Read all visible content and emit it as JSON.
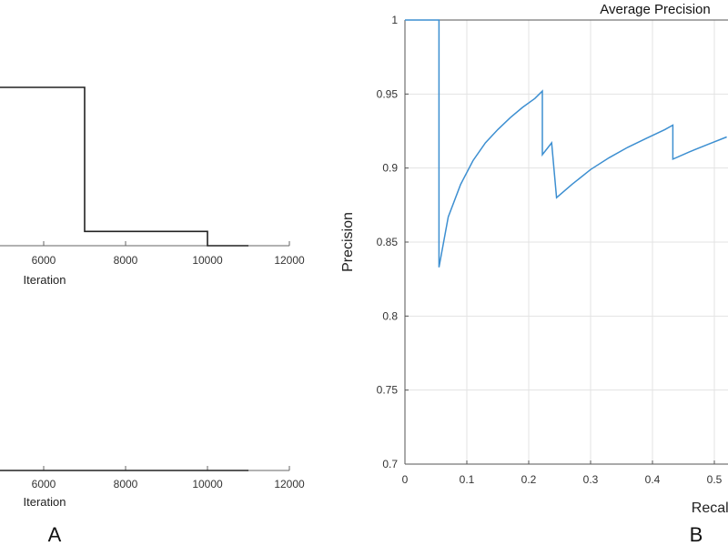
{
  "panels": {
    "a_label": "A",
    "b_label": "B"
  },
  "chart_data": [
    {
      "type": "line",
      "panel": "A-top",
      "title": "",
      "xlabel": "Iteration",
      "ylabel": "",
      "xlim": [
        0,
        12000
      ],
      "xticks": [
        6000,
        8000,
        10000,
        12000
      ],
      "series": [
        {
          "color": "#222222",
          "step": true,
          "x": [
            0,
            7000,
            7000,
            10000,
            10000,
            11000
          ],
          "y": [
            1.0,
            1.0,
            0.09,
            0.09,
            0.0,
            0.0
          ]
        }
      ]
    },
    {
      "type": "line",
      "panel": "A-bottom",
      "title": "",
      "xlabel": "Iteration",
      "ylabel": "",
      "xlim": [
        0,
        12000
      ],
      "xticks": [
        6000,
        8000,
        10000,
        12000
      ],
      "series": [
        {
          "color": "#222222",
          "x": [
            0,
            11000
          ],
          "y": [
            0,
            0
          ]
        }
      ]
    },
    {
      "type": "line",
      "panel": "B",
      "title": "Average Precision",
      "xlabel": "Recall",
      "ylabel": "Precision",
      "xlim": [
        0,
        0.52
      ],
      "ylim": [
        0.7,
        1.0
      ],
      "grid": true,
      "xticks": [
        0,
        0.1,
        0.2,
        0.3,
        0.4,
        0.5
      ],
      "xtick_labels": [
        "0",
        "0.1",
        "0.2",
        "0.3",
        "0.4",
        "0.5"
      ],
      "yticks": [
        0.7,
        0.75,
        0.8,
        0.85,
        0.9,
        0.95,
        1.0
      ],
      "ytick_labels": [
        "0.7",
        "0.75",
        "0.8",
        "0.85",
        "0.9",
        "0.95",
        "1"
      ],
      "series": [
        {
          "color": "#3d8fd1",
          "x": [
            0,
            0.055,
            0.055,
            0.07,
            0.09,
            0.11,
            0.13,
            0.15,
            0.17,
            0.19,
            0.21,
            0.222,
            0.222,
            0.237,
            0.237,
            0.245,
            0.245,
            0.27,
            0.3,
            0.33,
            0.36,
            0.39,
            0.42,
            0.433,
            0.433,
            0.46,
            0.49,
            0.52
          ],
          "y": [
            1.0,
            1.0,
            0.833,
            0.867,
            0.889,
            0.905,
            0.917,
            0.926,
            0.934,
            0.941,
            0.947,
            0.952,
            0.909,
            0.917,
            0.917,
            0.88,
            0.88,
            0.889,
            0.899,
            0.907,
            0.914,
            0.92,
            0.926,
            0.929,
            0.906,
            0.911,
            0.916,
            0.921
          ]
        }
      ]
    }
  ]
}
